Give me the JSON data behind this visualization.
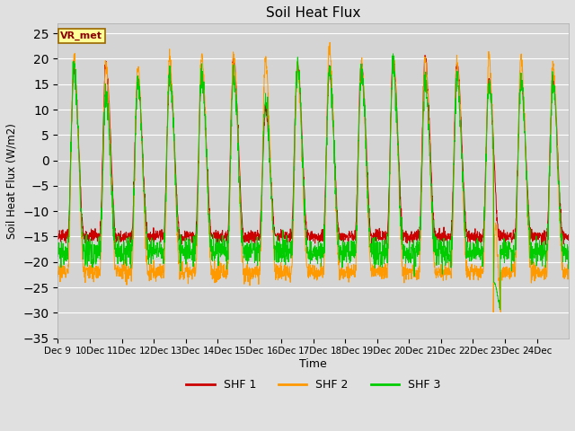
{
  "title": "Soil Heat Flux",
  "ylabel": "Soil Heat Flux (W/m2)",
  "xlabel": "Time",
  "ylim": [
    -35,
    27
  ],
  "yticks": [
    -35,
    -30,
    -25,
    -20,
    -15,
    -10,
    -5,
    0,
    5,
    10,
    15,
    20,
    25
  ],
  "annotation": "VR_met",
  "colors": {
    "SHF 1": "#cc0000",
    "SHF 2": "#ff9900",
    "SHF 3": "#00cc00"
  },
  "legend_labels": [
    "SHF 1",
    "SHF 2",
    "SHF 3"
  ],
  "fig_bg": "#e0e0e0",
  "plot_bg": "#d4d4d4",
  "grid_color": "#ffffff",
  "n_days": 16,
  "xtick_labels": [
    "Dec 9",
    "Dec 10",
    "Dec 11",
    "Dec 12",
    "Dec 13",
    "Dec 14",
    "Dec 15",
    "Dec 16",
    "Dec 17",
    "Dec 18",
    "Dec 19",
    "Dec 20",
    "Dec 21",
    "Dec 22",
    "Dec 23",
    "Dec 24"
  ],
  "seed": 42
}
